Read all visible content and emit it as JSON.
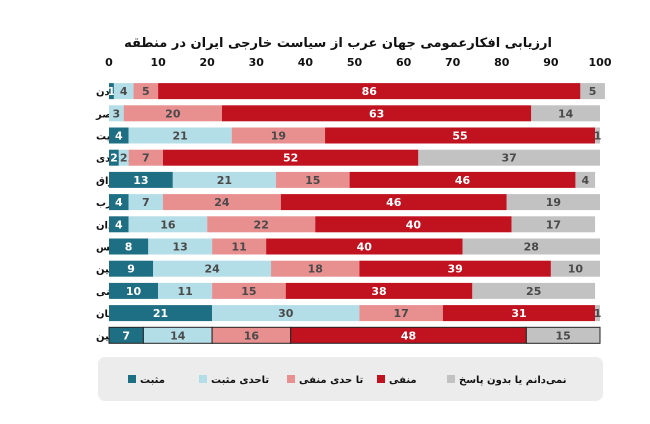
{
  "chart_data": {
    "type": "bar",
    "orientation": "horizontal",
    "stacked": true,
    "title": "ارزیابی افکارعمومی جهان عرب از سیاست خارجی ایران در منطقه",
    "xlim": [
      0,
      100
    ],
    "xticks": [
      "0",
      "10",
      "20",
      "30",
      "40",
      "50",
      "60",
      "70",
      "80",
      "90",
      "100"
    ],
    "grid": false,
    "legend_position": "bottom",
    "categories": [
      "اردن",
      "مصر",
      "کویت",
      "عربستان سعودی",
      "عراق",
      "مغرب",
      "سودان",
      "تونس",
      "فلسطین",
      "موریتانی",
      "لبنان",
      "میانگین"
    ],
    "series": [
      {
        "name": "مثبت",
        "color": "#1f6f84",
        "label_color": "#ffffff",
        "values": [
          1,
          0,
          4,
          2,
          13,
          4,
          4,
          8,
          9,
          10,
          21,
          7
        ]
      },
      {
        "name": "تاحدی مثبت",
        "color": "#b3dde7",
        "label_color": "#4a4a4a",
        "values": [
          4,
          3,
          21,
          2,
          21,
          7,
          16,
          13,
          24,
          11,
          30,
          14
        ]
      },
      {
        "name": "تا حدی منفی",
        "color": "#e88f90",
        "label_color": "#4a4a4a",
        "values": [
          5,
          20,
          19,
          7,
          15,
          24,
          22,
          11,
          18,
          15,
          17,
          16
        ]
      },
      {
        "name": "منفی",
        "color": "#c1121f",
        "label_color": "#ffffff",
        "values": [
          86,
          63,
          55,
          52,
          46,
          46,
          40,
          40,
          39,
          38,
          31,
          48
        ]
      },
      {
        "name": "نمی‌دانم یا بدون پاسخ",
        "color": "#c2c2c2",
        "label_color": "#4a4a4a",
        "values": [
          5,
          14,
          1,
          37,
          4,
          19,
          17,
          28,
          10,
          25,
          1,
          15
        ]
      }
    ]
  }
}
